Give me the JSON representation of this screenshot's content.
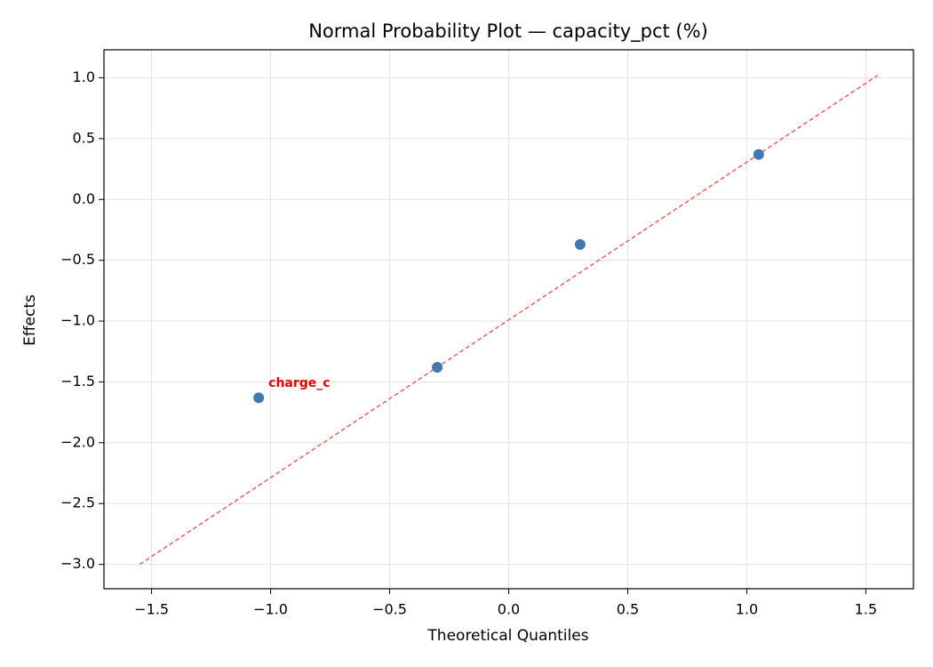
{
  "chart_data": {
    "type": "scatter",
    "title": "Normal Probability Plot — capacity_pct (%)",
    "x_label": "Theoretical Quantiles",
    "y_label": "Effects",
    "x": [
      -1.05,
      -0.3,
      0.3,
      1.05
    ],
    "values": [
      -1.63,
      -1.38,
      -0.37,
      0.37
    ],
    "color": "#4178b0",
    "reference_line": {
      "x": [
        -1.55,
        1.55
      ],
      "y": [
        -3.0,
        1.02
      ],
      "color": "#f0605a"
    },
    "annotations": [
      {
        "text": "charge_c",
        "x": -1.05,
        "y": -1.63,
        "color": "#ee0000"
      }
    ],
    "xlim": [
      -1.7,
      1.7
    ],
    "ylim": [
      -3.2,
      1.23
    ],
    "xticks": [
      {
        "value": -1.5,
        "label": "−1.5"
      },
      {
        "value": -1.0,
        "label": "−1.0"
      },
      {
        "value": -0.5,
        "label": "−0.5"
      },
      {
        "value": 0,
        "label": "0.0"
      },
      0.5,
      {
        "value": 1.0,
        "label": "1.0"
      },
      1.5
    ],
    "yticks": [
      {
        "value": -3.0,
        "label": "−3.0"
      },
      {
        "value": -2.5,
        "label": "−2.5"
      },
      {
        "value": -2.0,
        "label": "−2.0"
      },
      {
        "value": -1.5,
        "label": "−1.5"
      },
      {
        "value": -1.0,
        "label": "−1.0"
      },
      {
        "value": -0.5,
        "label": "−0.5"
      },
      {
        "value": 0,
        "label": "0.0"
      },
      0.5,
      {
        "value": 1.0,
        "label": "1.0"
      }
    ],
    "grid": true
  }
}
